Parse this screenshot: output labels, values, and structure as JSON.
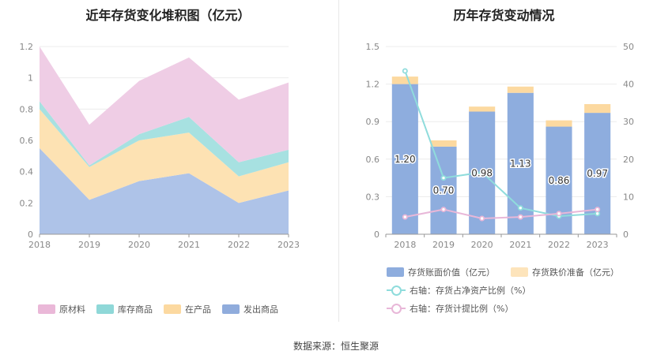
{
  "source": "数据来源：恒生聚源",
  "chart_data": [
    {
      "type": "area",
      "stacked": true,
      "title": "近年存货变化堆积图（亿元）",
      "x": [
        "2018",
        "2019",
        "2020",
        "2021",
        "2022",
        "2023"
      ],
      "ylim": [
        0,
        1.2
      ],
      "yticks": [
        "0",
        "0.2",
        "0.4",
        "0.6",
        "0.8",
        "1",
        "1.2"
      ],
      "series": [
        {
          "name": "发出商品",
          "values": [
            0.55,
            0.22,
            0.34,
            0.39,
            0.2,
            0.28
          ],
          "color": "#aec3e8"
        },
        {
          "name": "在产品",
          "values": [
            0.25,
            0.21,
            0.26,
            0.26,
            0.17,
            0.18
          ],
          "color": "#fde2b3"
        },
        {
          "name": "库存商品",
          "values": [
            0.05,
            0.01,
            0.04,
            0.1,
            0.09,
            0.08
          ],
          "color": "#a7e1e1"
        },
        {
          "name": "原材料",
          "values": [
            0.35,
            0.26,
            0.34,
            0.38,
            0.4,
            0.43
          ],
          "color": "#efcde5"
        }
      ],
      "legend": [
        "原材料",
        "库存商品",
        "在产品",
        "发出商品"
      ],
      "legend_colors": [
        "#eab8d8",
        "#8fd8d8",
        "#fcd9a0",
        "#90acdc"
      ],
      "legend_position": "bottom"
    },
    {
      "type": "bar",
      "stacked": true,
      "title": "历年存货变动情况",
      "x": [
        "2018",
        "2019",
        "2020",
        "2021",
        "2022",
        "2023"
      ],
      "ylim": [
        0,
        1.5
      ],
      "yticks": [
        "0",
        "0.3",
        "0.6",
        "0.9",
        "1.2",
        "1.5"
      ],
      "y2lim": [
        0,
        50
      ],
      "y2ticks": [
        "0",
        "10",
        "20",
        "30",
        "40",
        "50"
      ],
      "series": [
        {
          "name": "存货账面价值（亿元）",
          "values": [
            1.2,
            0.7,
            0.98,
            1.13,
            0.86,
            0.97
          ],
          "labels": [
            "1.20",
            "0.70",
            "0.98",
            "1.13",
            "0.86",
            "0.97"
          ],
          "color": "#8eadde"
        },
        {
          "name": "存货跌价准备（亿元）",
          "values": [
            0.06,
            0.05,
            0.04,
            0.05,
            0.05,
            0.07
          ],
          "color": "#fcd9a0"
        }
      ],
      "lines": [
        {
          "name": "右轴：存货占净资产比例（%）",
          "axis": "right",
          "values": [
            43.5,
            15.0,
            16.5,
            7.0,
            4.8,
            5.5
          ],
          "color": "#8fdcdc"
        },
        {
          "name": "右轴：存货计提比例（%）",
          "axis": "right",
          "values": [
            4.6,
            6.6,
            4.2,
            4.6,
            5.5,
            6.6
          ],
          "color": "#e8b7d8"
        }
      ],
      "legend_position": "bottom"
    }
  ]
}
